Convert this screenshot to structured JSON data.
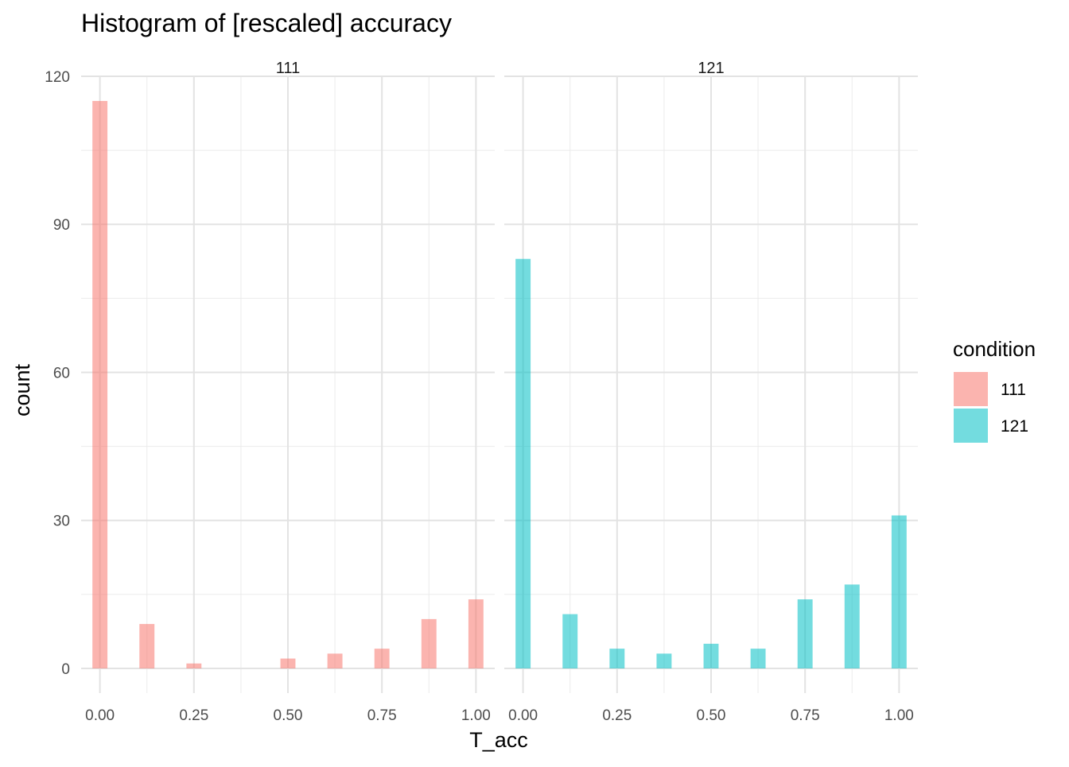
{
  "chart_data": {
    "type": "bar",
    "title": "Histogram of [rescaled] accuracy",
    "xlabel": "T_acc",
    "ylabel": "count",
    "xlim": [
      -0.05,
      1.05
    ],
    "ylim": [
      -5,
      120
    ],
    "x_ticks": [
      "0.00",
      "0.25",
      "0.50",
      "0.75",
      "1.00"
    ],
    "y_ticks": [
      "0",
      "30",
      "60",
      "90",
      "120"
    ],
    "grid": true,
    "legend": {
      "title": "condition",
      "position": "right",
      "entries": [
        {
          "label": "111",
          "color": "#F8766D"
        },
        {
          "label": "121",
          "color": "#00BFC4"
        }
      ]
    },
    "facets": [
      {
        "label": "111",
        "color": "#F8766D",
        "x": [
          0,
          0.125,
          0.25,
          0.5,
          0.625,
          0.75,
          0.875,
          1.0
        ],
        "values": [
          115,
          9,
          1,
          2,
          3,
          4,
          10,
          14
        ]
      },
      {
        "label": "121",
        "color": "#00BFC4",
        "x": [
          0,
          0.125,
          0.25,
          0.375,
          0.5,
          0.625,
          0.75,
          0.875,
          1.0
        ],
        "values": [
          83,
          11,
          4,
          3,
          5,
          4,
          14,
          17,
          31
        ]
      }
    ]
  }
}
